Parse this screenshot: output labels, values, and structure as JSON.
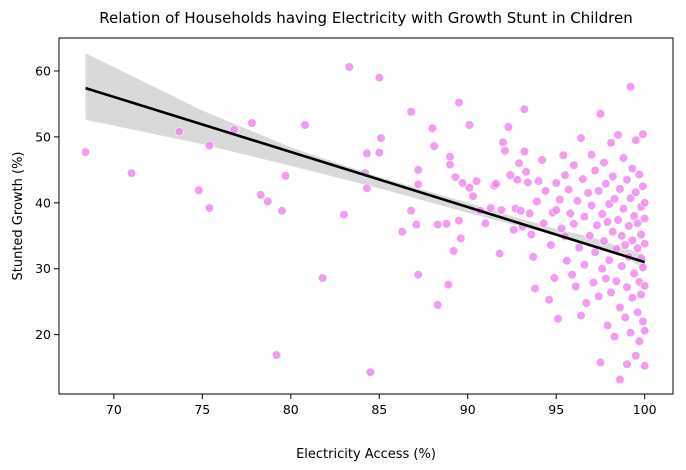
{
  "chart_data": {
    "type": "scatter",
    "title": "Relation of Households having Electricity with Growth Stunt in Children",
    "xlabel": "Electricity Access (%)",
    "ylabel": "Stunted Growth (%)",
    "xlim": [
      66.9,
      101.6
    ],
    "ylim": [
      11.0,
      65.0
    ],
    "x_ticks": [
      70,
      75,
      80,
      85,
      90,
      95,
      100
    ],
    "y_ticks": [
      20,
      30,
      40,
      50,
      60
    ],
    "grid": false,
    "colors": {
      "points": "#ee82ee",
      "point_edge": "#ffffff",
      "regression_line": "#000000",
      "confidence_band": "#d9d9d9"
    },
    "regression": {
      "start": [
        68.4,
        57.4
      ],
      "end": [
        100.0,
        31.0
      ]
    },
    "confidence_band": {
      "x": [
        68.4,
        75.0,
        80.0,
        85.0,
        90.0,
        95.0,
        97.0,
        99.0,
        100.0
      ],
      "upper": [
        62.7,
        54.0,
        48.4,
        43.9,
        40.0,
        36.0,
        34.8,
        33.0,
        32.1
      ],
      "lower": [
        52.6,
        48.9,
        45.6,
        42.2,
        38.5,
        35.0,
        33.6,
        31.6,
        29.9
      ]
    },
    "points": [
      [
        68.4,
        47.7
      ],
      [
        71.0,
        44.5
      ],
      [
        73.7,
        50.8
      ],
      [
        74.8,
        41.9
      ],
      [
        75.4,
        39.2
      ],
      [
        75.4,
        48.7
      ],
      [
        76.8,
        51.1
      ],
      [
        77.8,
        52.1
      ],
      [
        78.3,
        41.2
      ],
      [
        78.7,
        40.2
      ],
      [
        79.2,
        16.9
      ],
      [
        79.5,
        38.8
      ],
      [
        79.7,
        44.1
      ],
      [
        80.8,
        51.8
      ],
      [
        81.8,
        28.6
      ],
      [
        83.0,
        38.2
      ],
      [
        83.3,
        60.6
      ],
      [
        84.2,
        44.5
      ],
      [
        84.3,
        47.5
      ],
      [
        84.3,
        42.2
      ],
      [
        84.5,
        14.3
      ],
      [
        85.0,
        47.6
      ],
      [
        85.0,
        59.0
      ],
      [
        85.1,
        49.8
      ],
      [
        86.3,
        35.6
      ],
      [
        86.8,
        53.8
      ],
      [
        86.8,
        38.8
      ],
      [
        87.1,
        36.7
      ],
      [
        87.2,
        29.1
      ],
      [
        87.2,
        42.8
      ],
      [
        87.2,
        45.0
      ],
      [
        88.0,
        51.3
      ],
      [
        88.1,
        48.6
      ],
      [
        88.3,
        24.5
      ],
      [
        88.3,
        36.7
      ],
      [
        88.8,
        36.8
      ],
      [
        88.9,
        27.6
      ],
      [
        89.0,
        47.0
      ],
      [
        89.0,
        45.8
      ],
      [
        89.2,
        32.7
      ],
      [
        89.3,
        43.9
      ],
      [
        89.5,
        55.2
      ],
      [
        89.5,
        37.3
      ],
      [
        89.6,
        34.6
      ],
      [
        89.7,
        43.0
      ],
      [
        90.1,
        51.8
      ],
      [
        90.1,
        42.3
      ],
      [
        90.3,
        41.0
      ],
      [
        90.5,
        43.3
      ],
      [
        90.7,
        38.8
      ],
      [
        91.0,
        36.9
      ],
      [
        91.3,
        39.2
      ],
      [
        91.5,
        42.6
      ],
      [
        91.6,
        42.9
      ],
      [
        91.8,
        32.3
      ],
      [
        91.9,
        38.9
      ],
      [
        92.0,
        49.2
      ],
      [
        92.1,
        47.9
      ],
      [
        92.3,
        51.5
      ],
      [
        92.4,
        44.2
      ],
      [
        92.6,
        35.9
      ],
      [
        92.7,
        39.1
      ],
      [
        92.8,
        43.5
      ],
      [
        92.9,
        46.0
      ],
      [
        93.0,
        38.8
      ],
      [
        93.1,
        36.4
      ],
      [
        93.2,
        54.2
      ],
      [
        93.2,
        47.8
      ],
      [
        93.3,
        44.7
      ],
      [
        93.4,
        43.1
      ],
      [
        93.5,
        38.4
      ],
      [
        93.6,
        35.2
      ],
      [
        93.7,
        31.8
      ],
      [
        93.8,
        27.0
      ],
      [
        93.9,
        40.2
      ],
      [
        94.0,
        43.3
      ],
      [
        94.2,
        46.5
      ],
      [
        94.3,
        36.9
      ],
      [
        94.4,
        41.8
      ],
      [
        94.6,
        25.3
      ],
      [
        94.7,
        33.6
      ],
      [
        94.8,
        38.5
      ],
      [
        94.9,
        28.6
      ],
      [
        95.0,
        43.0
      ],
      [
        95.0,
        38.9
      ],
      [
        95.1,
        22.4
      ],
      [
        95.2,
        40.5
      ],
      [
        95.3,
        36.1
      ],
      [
        95.4,
        47.2
      ],
      [
        95.5,
        44.2
      ],
      [
        95.5,
        34.9
      ],
      [
        95.6,
        31.2
      ],
      [
        95.7,
        42.0
      ],
      [
        95.8,
        38.4
      ],
      [
        95.9,
        29.1
      ],
      [
        96.0,
        45.7
      ],
      [
        96.0,
        36.8
      ],
      [
        96.1,
        27.3
      ],
      [
        96.2,
        40.3
      ],
      [
        96.3,
        33.2
      ],
      [
        96.4,
        49.8
      ],
      [
        96.4,
        22.9
      ],
      [
        96.5,
        43.6
      ],
      [
        96.6,
        37.9
      ],
      [
        96.6,
        30.6
      ],
      [
        96.7,
        24.8
      ],
      [
        96.8,
        41.5
      ],
      [
        96.9,
        35.0
      ],
      [
        97.0,
        47.3
      ],
      [
        97.0,
        39.6
      ],
      [
        97.1,
        27.9
      ],
      [
        97.2,
        44.9
      ],
      [
        97.2,
        32.5
      ],
      [
        97.3,
        36.6
      ],
      [
        97.4,
        25.8
      ],
      [
        97.4,
        41.8
      ],
      [
        97.5,
        53.5
      ],
      [
        97.5,
        15.8
      ],
      [
        97.6,
        38.3
      ],
      [
        97.6,
        30.0
      ],
      [
        97.7,
        46.1
      ],
      [
        97.7,
        34.2
      ],
      [
        97.8,
        28.5
      ],
      [
        97.8,
        42.9
      ],
      [
        97.9,
        21.4
      ],
      [
        97.9,
        37.1
      ],
      [
        98.0,
        39.8
      ],
      [
        98.0,
        31.3
      ],
      [
        98.1,
        49.1
      ],
      [
        98.1,
        26.4
      ],
      [
        98.2,
        44.0
      ],
      [
        98.2,
        35.6
      ],
      [
        98.3,
        19.7
      ],
      [
        98.3,
        40.6
      ],
      [
        98.4,
        33.0
      ],
      [
        98.4,
        28.1
      ],
      [
        98.5,
        50.3
      ],
      [
        98.5,
        37.4
      ],
      [
        98.6,
        13.2
      ],
      [
        98.6,
        42.1
      ],
      [
        98.6,
        24.1
      ],
      [
        98.7,
        35.0
      ],
      [
        98.7,
        30.4
      ],
      [
        98.8,
        46.8
      ],
      [
        98.8,
        39.1
      ],
      [
        98.9,
        22.6
      ],
      [
        98.9,
        33.6
      ],
      [
        99.0,
        15.5
      ],
      [
        99.0,
        43.5
      ],
      [
        99.0,
        27.2
      ],
      [
        99.1,
        36.5
      ],
      [
        99.1,
        31.8
      ],
      [
        99.2,
        57.6
      ],
      [
        99.2,
        40.7
      ],
      [
        99.2,
        20.3
      ],
      [
        99.3,
        45.2
      ],
      [
        99.3,
        34.3
      ],
      [
        99.3,
        25.6
      ],
      [
        99.4,
        38.0
      ],
      [
        99.4,
        29.3
      ],
      [
        99.5,
        49.5
      ],
      [
        99.5,
        16.8
      ],
      [
        99.5,
        41.6
      ],
      [
        99.6,
        33.1
      ],
      [
        99.6,
        23.4
      ],
      [
        99.6,
        36.9
      ],
      [
        99.7,
        28.0
      ],
      [
        99.7,
        44.3
      ],
      [
        99.7,
        19.0
      ],
      [
        99.8,
        39.4
      ],
      [
        99.8,
        31.6
      ],
      [
        99.8,
        26.1
      ],
      [
        99.8,
        35.2
      ],
      [
        99.9,
        50.4
      ],
      [
        99.9,
        22.0
      ],
      [
        99.9,
        42.5
      ],
      [
        99.9,
        30.2
      ],
      [
        100.0,
        40.0
      ],
      [
        100.0,
        15.3
      ],
      [
        100.0,
        33.8
      ],
      [
        100.0,
        27.4
      ],
      [
        100.0,
        37.6
      ],
      [
        100.0,
        20.6
      ]
    ]
  }
}
